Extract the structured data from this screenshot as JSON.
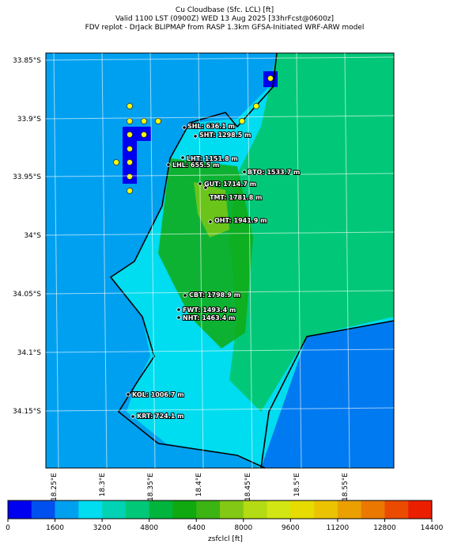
{
  "title": [
    "Cu Cloudbase (Sfc. LCL) [ft]",
    "Valid 1100 LST (0900Z) WED 13 Aug 2025 [33hrFcst@0600z]",
    "FDV replot - DrJack BLIPMAP from RASP 1.3km GFSA-Initiated WRF-ARW model"
  ],
  "map": {
    "lat_labels": [
      "33.85°S",
      "33.9°S",
      "33.95°S",
      "34°S",
      "34.05°S",
      "34.1°S",
      "34.15°S"
    ],
    "lon_labels": [
      "18.25°E",
      "18.3°E",
      "18.35°E",
      "18.4°E",
      "18.45°E",
      "18.5°E",
      "18.55°E"
    ],
    "stations": [
      "SHL: 636.1 m",
      "SHT: 1298.5 m",
      "LHT: 1151.8 m",
      "LHL: 655.5 m",
      "BTO: 1533.7 m",
      "GUT: 1714.7 m",
      "TMT: 1781.8 m",
      "OHT: 1941.9 m",
      "CBT: 1798.9 m",
      "FWT: 1493.4 m",
      "NHT: 1463.4 m",
      "KOL: 1006.7 m",
      "KRT: 724.1 m"
    ]
  },
  "colorbar": {
    "lim": [
      0,
      14400
    ],
    "ticks": [
      0,
      1600,
      3200,
      4800,
      6400,
      8000,
      9600,
      11200,
      12800,
      14400
    ],
    "colors": [
      "#0000f0",
      "#0050f0",
      "#00a0f0",
      "#00dcf0",
      "#00d2b4",
      "#00c878",
      "#00b43c",
      "#10aa10",
      "#3cb414",
      "#82c814",
      "#b4dc14",
      "#d2e614",
      "#e6dc00",
      "#ebc300",
      "#eba000",
      "#eb7800",
      "#eb4b00",
      "#eb1e00",
      "#c8001e"
    ],
    "label": "zsfclcl [ft]"
  }
}
